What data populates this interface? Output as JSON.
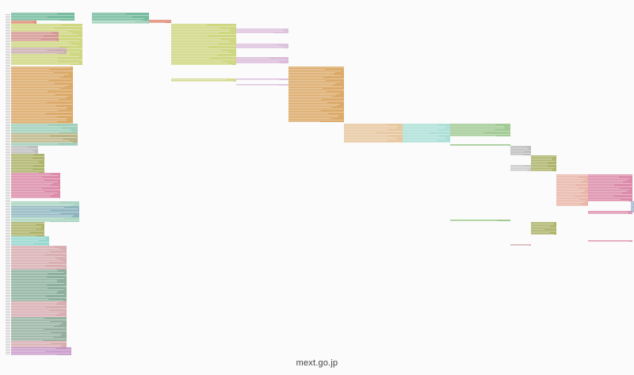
{
  "caption": "mext.go.jp",
  "palette": {
    "teal": "#5fb08e",
    "salmon": "#d9795f",
    "yellow_green": "#c4cd62",
    "pink": "#d46f95",
    "lavender": "#c593c4",
    "orange": "#d59a4e",
    "olive": "#9aa145",
    "gray": "#a9a9a9",
    "blue": "#6d8fb7",
    "green": "#63a94c",
    "aqua": "#65c7b9",
    "rose": "#c7888c",
    "violet": "#c28ec4"
  }
}
